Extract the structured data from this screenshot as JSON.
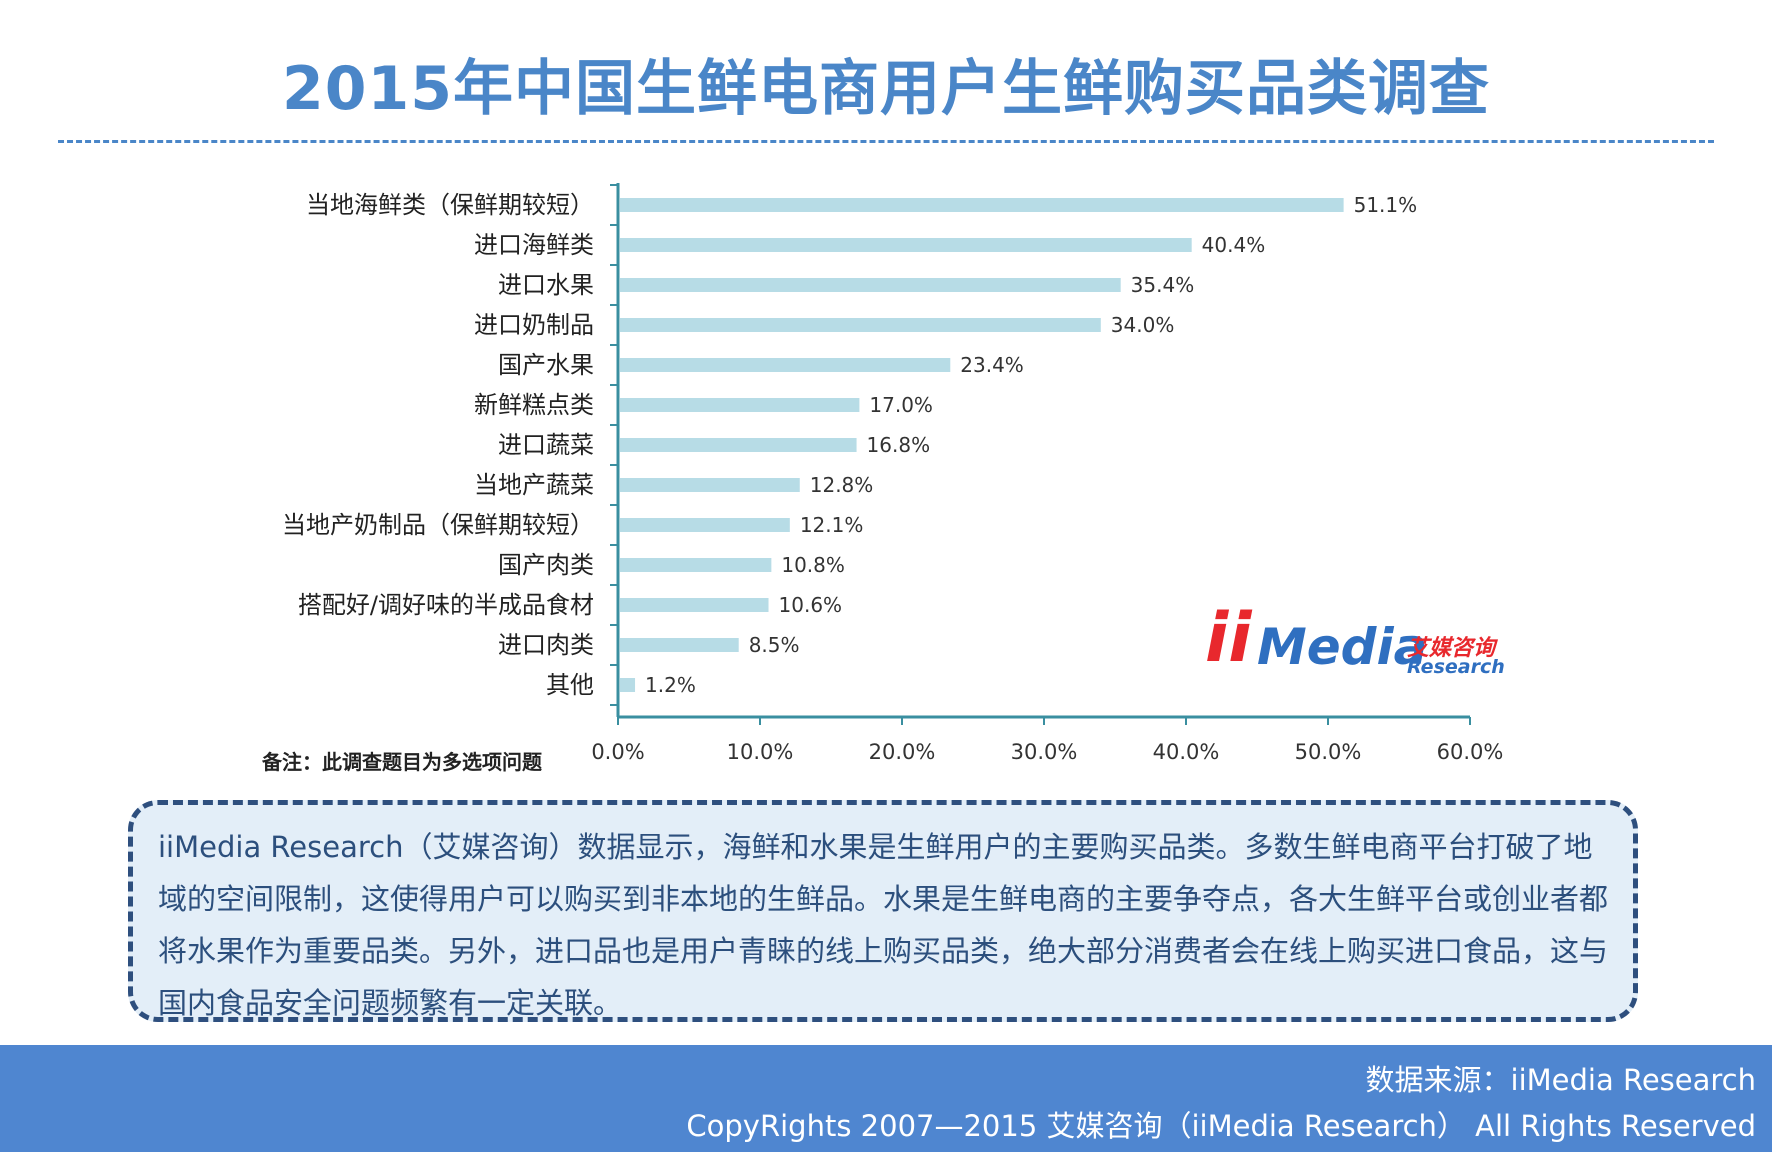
{
  "title": "2015年中国生鲜电商用户生鲜购买品类调查",
  "chart_data": {
    "type": "bar",
    "orientation": "horizontal",
    "categories": [
      "当地海鲜类（保鲜期较短）",
      "进口海鲜类",
      "进口水果",
      "进口奶制品",
      "国产水果",
      "新鲜糕点类",
      "进口蔬菜",
      "当地产蔬菜",
      "当地产奶制品（保鲜期较短）",
      "国产肉类",
      "搭配好/调好味的半成品食材",
      "进口肉类",
      "其他"
    ],
    "values": [
      51.1,
      40.4,
      35.4,
      34.0,
      23.4,
      17.0,
      16.8,
      12.8,
      12.1,
      10.8,
      10.6,
      8.5,
      1.2
    ],
    "value_labels": [
      "51.1%",
      "40.4%",
      "35.4%",
      "34.0%",
      "23.4%",
      "17.0%",
      "16.8%",
      "12.8%",
      "12.1%",
      "10.8%",
      "10.6%",
      "8.5%",
      "1.2%"
    ],
    "x_ticks": [
      0,
      10,
      20,
      30,
      40,
      50,
      60
    ],
    "x_tick_labels": [
      "0.0%",
      "10.0%",
      "20.0%",
      "30.0%",
      "40.0%",
      "50.0%",
      "60.0%"
    ],
    "xlim": [
      0,
      60
    ],
    "bar_color": "#b7dce6",
    "axis_color": "#3a8fa0",
    "grid": false,
    "legend": "none"
  },
  "note": "备注：此调查题目为多选项问题",
  "logo": {
    "i_letters": "ii",
    "brand": "Media",
    "cn": "艾媒咨询",
    "en": "Research"
  },
  "summary": "iiMedia Research（艾媒咨询）数据显示，海鲜和水果是生鲜用户的主要购买品类。多数生鲜电商平台打破了地域的空间限制，这使得用户可以购买到非本地的生鲜品。水果是生鲜电商的主要争夺点，各大生鲜平台或创业者都将水果作为重要品类。另外，进口品也是用户青睐的线上购买品类，绝大部分消费者会在线上购买进口食品，这与国内食品安全问题频繁有一定关联。",
  "footer": {
    "source": "数据来源：iiMedia Research",
    "copyright": "CopyRights 2007—2015 艾媒咨询（iiMedia Research） All Rights Reserved"
  }
}
